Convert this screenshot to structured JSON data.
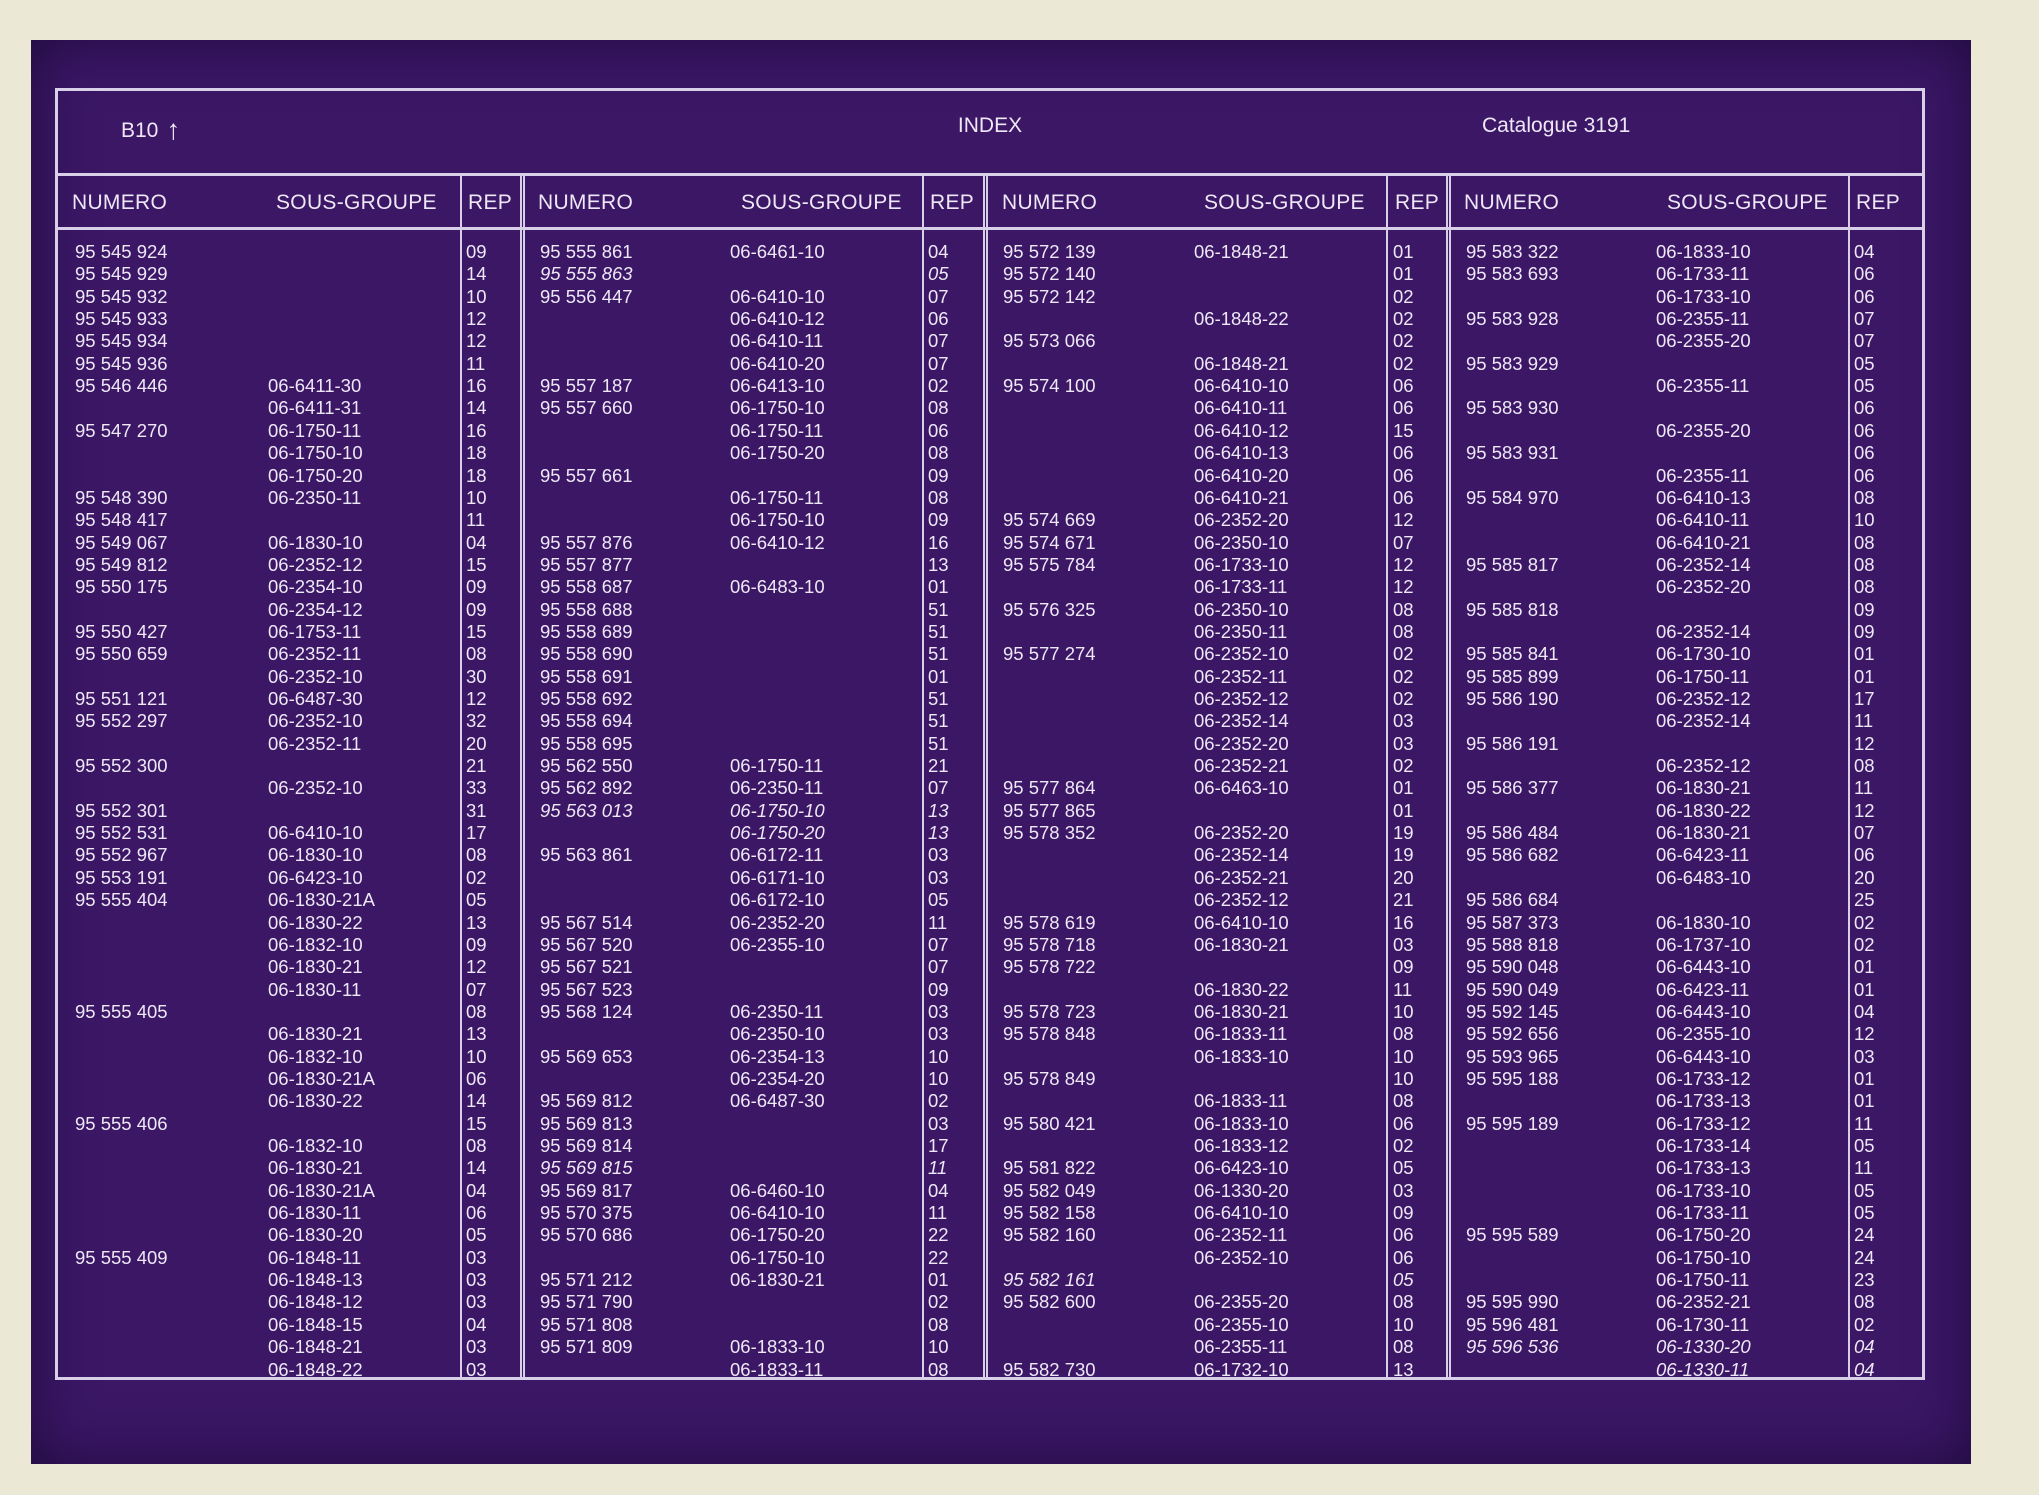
{
  "header": {
    "left": "B10",
    "left_arrow": "↑",
    "center": "INDEX",
    "right": "Catalogue  3191"
  },
  "column_labels": {
    "numero": "NUMERO",
    "sous_groupe": "SOUS-GROUPE",
    "rep": "REP"
  },
  "columns": [
    [
      [
        "95 545 924",
        "",
        "09"
      ],
      [
        "95 545 929",
        "",
        "14"
      ],
      [
        "95 545 932",
        "",
        "10"
      ],
      [
        "95 545 933",
        "",
        "12"
      ],
      [
        "95 545 934",
        "",
        "12"
      ],
      [
        "95 545 936",
        "",
        "11"
      ],
      [
        "95 546 446",
        "06-6411-30",
        "16"
      ],
      [
        "",
        "06-6411-31",
        "14"
      ],
      [
        "95 547 270",
        "06-1750-11",
        "16"
      ],
      [
        "",
        "06-1750-10",
        "18"
      ],
      [
        "",
        "06-1750-20",
        "18"
      ],
      [
        "95 548 390",
        "06-2350-11",
        "10"
      ],
      [
        "95 548 417",
        "",
        "11"
      ],
      [
        "95 549 067",
        "06-1830-10",
        "04"
      ],
      [
        "95 549 812",
        "06-2352-12",
        "15"
      ],
      [
        "95 550 175",
        "06-2354-10",
        "09"
      ],
      [
        "",
        "06-2354-12",
        "09"
      ],
      [
        "95 550 427",
        "06-1753-11",
        "15"
      ],
      [
        "95 550 659",
        "06-2352-11",
        "08"
      ],
      [
        "",
        "06-2352-10",
        "30"
      ],
      [
        "95 551 121",
        "06-6487-30",
        "12"
      ],
      [
        "95 552 297",
        "06-2352-10",
        "32"
      ],
      [
        "",
        "06-2352-11",
        "20"
      ],
      [
        "95 552 300",
        "",
        "21"
      ],
      [
        "",
        "06-2352-10",
        "33"
      ],
      [
        "95 552 301",
        "",
        "31"
      ],
      [
        "95 552 531",
        "06-6410-10",
        "17"
      ],
      [
        "95 552 967",
        "06-1830-10",
        "08"
      ],
      [
        "95 553 191",
        "06-6423-10",
        "02"
      ],
      [
        "95 555 404",
        "06-1830-21A",
        "05"
      ],
      [
        "",
        "06-1830-22",
        "13"
      ],
      [
        "",
        "06-1832-10",
        "09"
      ],
      [
        "",
        "06-1830-21",
        "12"
      ],
      [
        "",
        "06-1830-11",
        "07"
      ],
      [
        "95 555 405",
        "",
        "08"
      ],
      [
        "",
        "06-1830-21",
        "13"
      ],
      [
        "",
        "06-1832-10",
        "10"
      ],
      [
        "",
        "06-1830-21A",
        "06"
      ],
      [
        "",
        "06-1830-22",
        "14"
      ],
      [
        "95 555 406",
        "",
        "15"
      ],
      [
        "",
        "06-1832-10",
        "08"
      ],
      [
        "",
        "06-1830-21",
        "14"
      ],
      [
        "",
        "06-1830-21A",
        "04"
      ],
      [
        "",
        "06-1830-11",
        "06"
      ],
      [
        "",
        "06-1830-20",
        "05"
      ],
      [
        "95 555 409",
        "06-1848-11",
        "03"
      ],
      [
        "",
        "06-1848-13",
        "03"
      ],
      [
        "",
        "06-1848-12",
        "03"
      ],
      [
        "",
        "06-1848-15",
        "04"
      ],
      [
        "",
        "06-1848-21",
        "03"
      ],
      [
        "",
        "06-1848-22",
        "03"
      ]
    ],
    [
      [
        "95 555 861",
        "06-6461-10",
        "04"
      ],
      [
        "95 555 863",
        "",
        "05"
      ],
      [
        "95 556 447",
        "06-6410-10",
        "07"
      ],
      [
        "",
        "06-6410-12",
        "06"
      ],
      [
        "",
        "06-6410-11",
        "07"
      ],
      [
        "",
        "06-6410-20",
        "07"
      ],
      [
        "95 557 187",
        "06-6413-10",
        "02"
      ],
      [
        "95 557 660",
        "06-1750-10",
        "08"
      ],
      [
        "",
        "06-1750-11",
        "06"
      ],
      [
        "",
        "06-1750-20",
        "08"
      ],
      [
        "95 557 661",
        "",
        "09"
      ],
      [
        "",
        "06-1750-11",
        "08"
      ],
      [
        "",
        "06-1750-10",
        "09"
      ],
      [
        "95 557 876",
        "06-6410-12",
        "16"
      ],
      [
        "95 557 877",
        "",
        "13"
      ],
      [
        "95 558 687",
        "06-6483-10",
        "01"
      ],
      [
        "95 558 688",
        "",
        "51"
      ],
      [
        "95 558 689",
        "",
        "51"
      ],
      [
        "95 558 690",
        "",
        "51"
      ],
      [
        "95 558 691",
        "",
        "01"
      ],
      [
        "95 558 692",
        "",
        "51"
      ],
      [
        "95 558 694",
        "",
        "51"
      ],
      [
        "95 558 695",
        "",
        "51"
      ],
      [
        "95 562 550",
        "06-1750-11",
        "21"
      ],
      [
        "95 562 892",
        "06-2350-11",
        "07"
      ],
      [
        "95 563 013",
        "06-1750-10",
        "13"
      ],
      [
        "",
        "06-1750-20",
        "13"
      ],
      [
        "95 563 861",
        "06-6172-11",
        "03"
      ],
      [
        "",
        "06-6171-10",
        "03"
      ],
      [
        "",
        "06-6172-10",
        "05"
      ],
      [
        "95 567 514",
        "06-2352-20",
        "11"
      ],
      [
        "95 567 520",
        "06-2355-10",
        "07"
      ],
      [
        "95 567 521",
        "",
        "07"
      ],
      [
        "95 567 523",
        "",
        "09"
      ],
      [
        "95 568 124",
        "06-2350-11",
        "03"
      ],
      [
        "",
        "06-2350-10",
        "03"
      ],
      [
        "95 569 653",
        "06-2354-13",
        "10"
      ],
      [
        "",
        "06-2354-20",
        "10"
      ],
      [
        "95 569 812",
        "06-6487-30",
        "02"
      ],
      [
        "95 569 813",
        "",
        "03"
      ],
      [
        "95 569 814",
        "",
        "17"
      ],
      [
        "95 569 815",
        "",
        "11"
      ],
      [
        "95 569 817",
        "06-6460-10",
        "04"
      ],
      [
        "95 570 375",
        "06-6410-10",
        "11"
      ],
      [
        "95 570 686",
        "06-1750-20",
        "22"
      ],
      [
        "",
        "06-1750-10",
        "22"
      ],
      [
        "95 571 212",
        "06-1830-21",
        "01"
      ],
      [
        "95 571 790",
        "",
        "02"
      ],
      [
        "95 571 808",
        "",
        "08"
      ],
      [
        "95 571 809",
        "06-1833-10",
        "10"
      ],
      [
        "",
        "06-1833-11",
        "08"
      ]
    ],
    [
      [
        "95 572 139",
        "06-1848-21",
        "01"
      ],
      [
        "95 572 140",
        "",
        "01"
      ],
      [
        "95 572 142",
        "",
        "02"
      ],
      [
        "",
        "06-1848-22",
        "02"
      ],
      [
        "95 573 066",
        "",
        "02"
      ],
      [
        "",
        "06-1848-21",
        "02"
      ],
      [
        "95 574 100",
        "06-6410-10",
        "06"
      ],
      [
        "",
        "06-6410-11",
        "06"
      ],
      [
        "",
        "06-6410-12",
        "15"
      ],
      [
        "",
        "06-6410-13",
        "06"
      ],
      [
        "",
        "06-6410-20",
        "06"
      ],
      [
        "",
        "06-6410-21",
        "06"
      ],
      [
        "95 574 669",
        "06-2352-20",
        "12"
      ],
      [
        "95 574 671",
        "06-2350-10",
        "07"
      ],
      [
        "95 575 784",
        "06-1733-10",
        "12"
      ],
      [
        "",
        "06-1733-11",
        "12"
      ],
      [
        "95 576 325",
        "06-2350-10",
        "08"
      ],
      [
        "",
        "06-2350-11",
        "08"
      ],
      [
        "95 577 274",
        "06-2352-10",
        "02"
      ],
      [
        "",
        "06-2352-11",
        "02"
      ],
      [
        "",
        "06-2352-12",
        "02"
      ],
      [
        "",
        "06-2352-14",
        "03"
      ],
      [
        "",
        "06-2352-20",
        "03"
      ],
      [
        "",
        "06-2352-21",
        "02"
      ],
      [
        "95 577 864",
        "06-6463-10",
        "01"
      ],
      [
        "95 577 865",
        "",
        "01"
      ],
      [
        "95 578 352",
        "06-2352-20",
        "19"
      ],
      [
        "",
        "06-2352-14",
        "19"
      ],
      [
        "",
        "06-2352-21",
        "20"
      ],
      [
        "",
        "06-2352-12",
        "21"
      ],
      [
        "95 578 619",
        "06-6410-10",
        "16"
      ],
      [
        "95 578 718",
        "06-1830-21",
        "03"
      ],
      [
        "95 578 722",
        "",
        "09"
      ],
      [
        "",
        "06-1830-22",
        "11"
      ],
      [
        "95 578 723",
        "06-1830-21",
        "10"
      ],
      [
        "95 578 848",
        "06-1833-11",
        "08"
      ],
      [
        "",
        "06-1833-10",
        "10"
      ],
      [
        "95 578 849",
        "",
        "10"
      ],
      [
        "",
        "06-1833-11",
        "08"
      ],
      [
        "95 580 421",
        "06-1833-10",
        "06"
      ],
      [
        "",
        "06-1833-12",
        "02"
      ],
      [
        "95 581 822",
        "06-6423-10",
        "05"
      ],
      [
        "95 582 049",
        "06-1330-20",
        "03"
      ],
      [
        "95 582 158",
        "06-6410-10",
        "09"
      ],
      [
        "95 582 160",
        "06-2352-11",
        "06"
      ],
      [
        "",
        "06-2352-10",
        "06"
      ],
      [
        "95 582 161",
        "",
        "05"
      ],
      [
        "95 582 600",
        "06-2355-20",
        "08"
      ],
      [
        "",
        "06-2355-10",
        "10"
      ],
      [
        "",
        "06-2355-11",
        "08"
      ],
      [
        "95 582 730",
        "06-1732-10",
        "13"
      ]
    ],
    [
      [
        "95 583 322",
        "06-1833-10",
        "04"
      ],
      [
        "95 583 693",
        "06-1733-11",
        "06"
      ],
      [
        "",
        "06-1733-10",
        "06"
      ],
      [
        "95 583 928",
        "06-2355-11",
        "07"
      ],
      [
        "",
        "06-2355-20",
        "07"
      ],
      [
        "95 583 929",
        "",
        "05"
      ],
      [
        "",
        "06-2355-11",
        "05"
      ],
      [
        "95 583 930",
        "",
        "06"
      ],
      [
        "",
        "06-2355-20",
        "06"
      ],
      [
        "95 583 931",
        "",
        "06"
      ],
      [
        "",
        "06-2355-11",
        "06"
      ],
      [
        "95 584 970",
        "06-6410-13",
        "08"
      ],
      [
        "",
        "06-6410-11",
        "10"
      ],
      [
        "",
        "06-6410-21",
        "08"
      ],
      [
        "95 585 817",
        "06-2352-14",
        "08"
      ],
      [
        "",
        "06-2352-20",
        "08"
      ],
      [
        "95 585 818",
        "",
        "09"
      ],
      [
        "",
        "06-2352-14",
        "09"
      ],
      [
        "95 585 841",
        "06-1730-10",
        "01"
      ],
      [
        "95 585 899",
        "06-1750-11",
        "01"
      ],
      [
        "95 586 190",
        "06-2352-12",
        "17"
      ],
      [
        "",
        "06-2352-14",
        "11"
      ],
      [
        "95 586 191",
        "",
        "12"
      ],
      [
        "",
        "06-2352-12",
        "08"
      ],
      [
        "95 586 377",
        "06-1830-21",
        "11"
      ],
      [
        "",
        "06-1830-22",
        "12"
      ],
      [
        "95 586 484",
        "06-1830-21",
        "07"
      ],
      [
        "95 586 682",
        "06-6423-11",
        "06"
      ],
      [
        "",
        "06-6483-10",
        "20"
      ],
      [
        "95 586 684",
        "",
        "25"
      ],
      [
        "95 587 373",
        "06-1830-10",
        "02"
      ],
      [
        "95 588 818",
        "06-1737-10",
        "02"
      ],
      [
        "95 590 048",
        "06-6443-10",
        "01"
      ],
      [
        "95 590 049",
        "06-6423-11",
        "01"
      ],
      [
        "95 592 145",
        "06-6443-10",
        "04"
      ],
      [
        "95 592 656",
        "06-2355-10",
        "12"
      ],
      [
        "95 593 965",
        "06-6443-10",
        "03"
      ],
      [
        "95 595 188",
        "06-1733-12",
        "01"
      ],
      [
        "",
        "06-1733-13",
        "01"
      ],
      [
        "95 595 189",
        "06-1733-12",
        "11"
      ],
      [
        "",
        "06-1733-14",
        "05"
      ],
      [
        "",
        "06-1733-13",
        "11"
      ],
      [
        "",
        "06-1733-10",
        "05"
      ],
      [
        "",
        "06-1733-11",
        "05"
      ],
      [
        "95 595 589",
        "06-1750-20",
        "24"
      ],
      [
        "",
        "06-1750-10",
        "24"
      ],
      [
        "",
        "06-1750-11",
        "23"
      ],
      [
        "95 595 990",
        "06-2352-21",
        "08"
      ],
      [
        "95 596 481",
        "06-1730-11",
        "02"
      ],
      [
        "95 596 536",
        "06-1330-20",
        "04"
      ],
      [
        "",
        "06-1330-11",
        "04"
      ]
    ]
  ],
  "italic_rows": [
    [],
    [
      1,
      25,
      26,
      41
    ],
    [
      46
    ],
    [
      49,
      50
    ]
  ]
}
